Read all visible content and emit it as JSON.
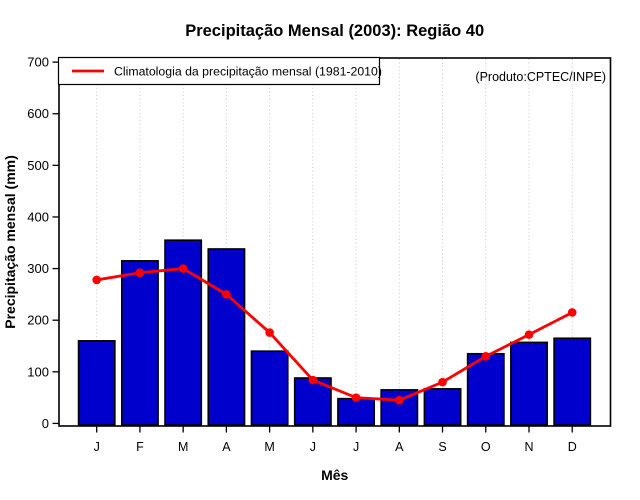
{
  "chart_data": {
    "type": "bar",
    "title": "Precipitação Mensal (2003): Região 40",
    "watermark": "(Produto:CPTEC/INPE)",
    "xlabel": "Mês",
    "ylabel": "Precipitação mensal (mm)",
    "categories": [
      "J",
      "F",
      "M",
      "A",
      "M",
      "J",
      "J",
      "A",
      "S",
      "O",
      "N",
      "D"
    ],
    "series": [
      {
        "name": "Precipitação mensal 2003",
        "type": "bar",
        "values": [
          160,
          315,
          355,
          338,
          140,
          88,
          48,
          65,
          67,
          135,
          157,
          165
        ]
      },
      {
        "name": "Climatologia da precipitação mensal (1981-2010)",
        "type": "line",
        "values": [
          278,
          292,
          300,
          250,
          176,
          84,
          50,
          45,
          80,
          130,
          172,
          215
        ]
      }
    ],
    "ylim": [
      0,
      700
    ],
    "yticks": [
      0,
      100,
      200,
      300,
      400,
      500,
      600,
      700
    ],
    "legend_label": "Climatologia da precipitação mensal (1981-2010)",
    "legend_position": "top-left",
    "grid": "vertical-dotted",
    "colors": {
      "bar_fill": "#0000CC",
      "bar_border": "#000000",
      "line": "#FF0000",
      "grid": "#C9C9C9",
      "watermark": "#8C8C8C",
      "axis": "#000000",
      "background": "#FFFFFF"
    }
  }
}
